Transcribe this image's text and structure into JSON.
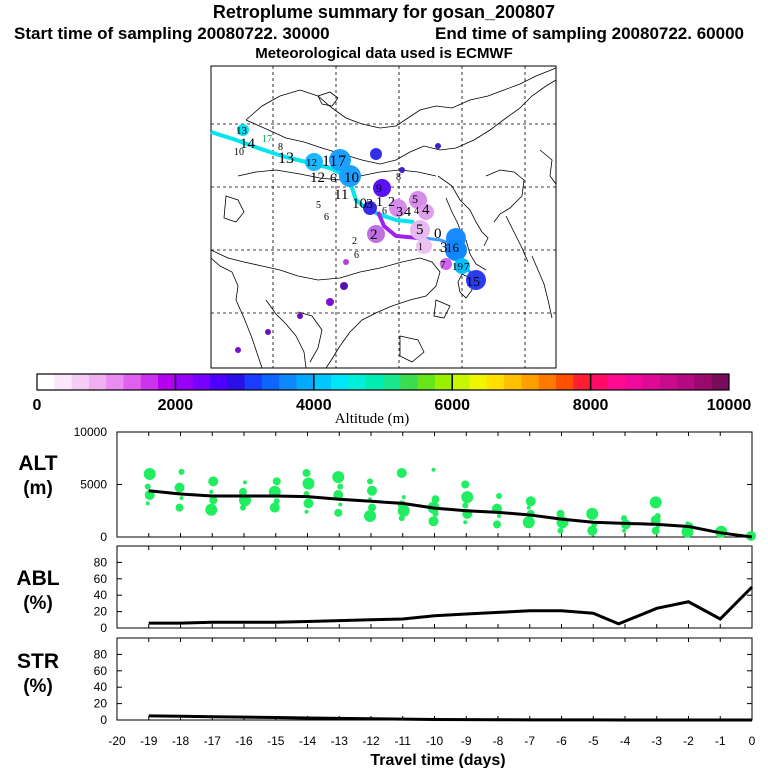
{
  "header": {
    "title": "Retroplume summary for gosan_200807",
    "start": "Start time of sampling 20080722. 30000",
    "end": "End time of sampling 20080722. 60000",
    "met": "Meteorological data used is ECMWF"
  },
  "colorbar": {
    "label": "Altitude (m)",
    "ticks": [
      "0",
      "2000",
      "4000",
      "6000",
      "8000",
      "10000"
    ],
    "colors": [
      "#ffffff",
      "#fbe6fb",
      "#f5ccf5",
      "#f0b0f0",
      "#ea8cf2",
      "#e060f0",
      "#cc33ee",
      "#b300f0",
      "#9900f7",
      "#7700ff",
      "#4d00ff",
      "#2a10e6",
      "#1a3cff",
      "#0f66ff",
      "#0f88ff",
      "#00aaff",
      "#00c8ff",
      "#00e6f6",
      "#00f0d8",
      "#00ecb0",
      "#1ae68c",
      "#3cdc50",
      "#66e61a",
      "#99f000",
      "#c8f500",
      "#f0f500",
      "#ffe000",
      "#ffc000",
      "#ffa000",
      "#ff7800",
      "#ff5000",
      "#ff1e32",
      "#ff0a64",
      "#ff0a90",
      "#f00a9c",
      "#dc0a96",
      "#c80a8c",
      "#b40a82",
      "#9a0a6e",
      "#7a0a5a"
    ]
  },
  "map": {
    "trajectory_labels": [
      "13",
      "14",
      "17",
      "8",
      "10",
      "13",
      "12",
      "11",
      "7",
      "12",
      "6",
      "10",
      "11",
      "10",
      "9",
      "8",
      "5",
      "3",
      "1",
      "2",
      "3",
      "4",
      "5",
      "6",
      "4",
      "4",
      "6",
      "2",
      "5",
      "0",
      "2",
      "1",
      "6",
      "3",
      "7",
      "19",
      "7",
      "15",
      "16"
    ],
    "colors": {
      "trail_cyan": "#00e6f0",
      "trail_purple": "#a020f0"
    }
  },
  "chart_data": [
    {
      "type": "line",
      "panel": "ALT",
      "ylabel": "ALT (m)",
      "ylabel_line1": "ALT",
      "ylabel_line2": "(m)",
      "ylim": [
        0,
        10000
      ],
      "yticks": [
        "0",
        "5000",
        "10000"
      ],
      "x": [
        -19,
        -18,
        -17,
        -16,
        -15,
        -14,
        -13,
        -12,
        -11,
        -10,
        -9,
        -8,
        -7,
        -6,
        -5,
        -4,
        -3,
        -2,
        -1,
        0
      ],
      "values": [
        4400,
        4100,
        3900,
        3900,
        3900,
        3850,
        3600,
        3400,
        3200,
        2750,
        2500,
        2350,
        2100,
        1700,
        1400,
        1300,
        1200,
        1000,
        400,
        0
      ],
      "scatter": [
        {
          "x": -19,
          "y": [
            3200,
            4000,
            4800,
            6000
          ]
        },
        {
          "x": -18,
          "y": [
            2800,
            3700,
            4700,
            6200
          ]
        },
        {
          "x": -17,
          "y": [
            2600,
            3500,
            4300,
            5300
          ]
        },
        {
          "x": -16,
          "y": [
            2800,
            3500,
            4300,
            5200
          ]
        },
        {
          "x": -15,
          "y": [
            2800,
            3400,
            4300,
            5300
          ]
        },
        {
          "x": -14,
          "y": [
            2400,
            3200,
            4100,
            5100,
            6100
          ]
        },
        {
          "x": -13,
          "y": [
            2300,
            3100,
            4000,
            4800,
            5700
          ]
        },
        {
          "x": -12,
          "y": [
            2000,
            2800,
            3600,
            4400,
            5300
          ]
        },
        {
          "x": -11,
          "y": [
            1800,
            2500,
            3100,
            3800,
            6100
          ]
        },
        {
          "x": -10,
          "y": [
            1500,
            2200,
            2800,
            3600,
            6400
          ]
        },
        {
          "x": -9,
          "y": [
            1400,
            2200,
            3000,
            3800,
            5000
          ]
        },
        {
          "x": -8,
          "y": [
            1200,
            2000,
            2700,
            3900
          ]
        },
        {
          "x": -7,
          "y": [
            1400,
            2200,
            2800,
            3400
          ]
        },
        {
          "x": -6,
          "y": [
            600,
            1400,
            2200
          ]
        },
        {
          "x": -5,
          "y": [
            600,
            1200,
            2200
          ]
        },
        {
          "x": -4,
          "y": [
            600,
            1200,
            1800
          ]
        },
        {
          "x": -3,
          "y": [
            600,
            1000,
            1600,
            2000,
            3300
          ]
        },
        {
          "x": -2,
          "y": [
            500,
            1000,
            1300
          ]
        },
        {
          "x": -1,
          "y": [
            200,
            500
          ]
        },
        {
          "x": 0,
          "y": [
            100
          ]
        }
      ]
    },
    {
      "type": "line",
      "panel": "ABL",
      "ylabel": "ABL (%)",
      "ylabel_line1": "ABL",
      "ylabel_line2": "(%)",
      "ylim": [
        0,
        100
      ],
      "yticks": [
        "0",
        "20",
        "40",
        "60",
        "80"
      ],
      "x": [
        -19,
        -18,
        -17,
        -16,
        -15,
        -14,
        -13,
        -12,
        -11,
        -10,
        -9,
        -8,
        -7,
        -6,
        -5,
        -4.2,
        -3,
        -2,
        -1,
        0
      ],
      "values": [
        6,
        6,
        7,
        7,
        7,
        8,
        9,
        10,
        11,
        15,
        17,
        19,
        21,
        21,
        18,
        5,
        24,
        32,
        11,
        50
      ]
    },
    {
      "type": "line",
      "panel": "STR",
      "ylabel": "STR (%)",
      "ylabel_line1": "STR",
      "ylabel_line2": "(%)",
      "ylim": [
        0,
        100
      ],
      "yticks": [
        "0",
        "20",
        "40",
        "60",
        "80"
      ],
      "x": [
        -19,
        -18,
        -17,
        -16,
        -15,
        -14,
        -13,
        -12,
        -11,
        -10,
        -9,
        -8,
        -7,
        -6,
        -5,
        -4,
        -3,
        -2,
        -1,
        0
      ],
      "values": [
        5,
        4.5,
        4,
        3.5,
        3,
        2.5,
        2,
        1.5,
        1,
        0.6,
        0.4,
        0.3,
        0.2,
        0.1,
        0.1,
        0,
        0,
        0,
        0,
        0
      ]
    }
  ],
  "xaxis": {
    "label": "Travel time (days)",
    "xlim": [
      -20,
      0
    ],
    "ticks": [
      "-20",
      "-19",
      "-18",
      "-17",
      "-16",
      "-15",
      "-14",
      "-13",
      "-12",
      "-11",
      "-10",
      "-9",
      "-8",
      "-7",
      "-6",
      "-5",
      "-4",
      "-3",
      "-2",
      "-1",
      "0"
    ]
  }
}
